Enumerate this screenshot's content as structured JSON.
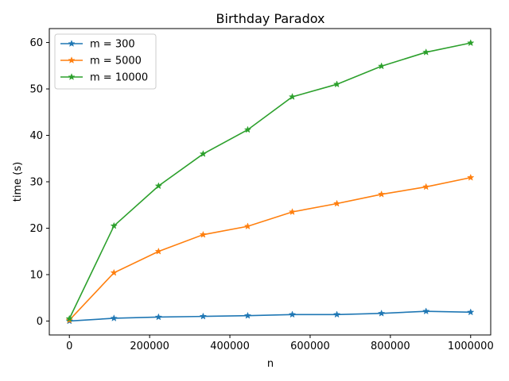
{
  "chart_data": {
    "type": "line",
    "title": "Birthday Paradox",
    "xlabel": "n",
    "ylabel": "time (s)",
    "xlim": [
      -50000,
      1050000
    ],
    "ylim": [
      -3,
      63
    ],
    "xticks": [
      0,
      200000,
      400000,
      600000,
      800000,
      1000000
    ],
    "xtick_labels": [
      "0",
      "200000",
      "400000",
      "600000",
      "800000",
      "1000000"
    ],
    "yticks": [
      0,
      10,
      20,
      30,
      40,
      50,
      60
    ],
    "ytick_labels": [
      "0",
      "10",
      "20",
      "30",
      "40",
      "50",
      "60"
    ],
    "grid": false,
    "legend_position": "upper-left",
    "marker": "star",
    "x": [
      0,
      111111,
      222222,
      333333,
      444444,
      555555,
      666666,
      777777,
      888888,
      1000000
    ],
    "series": [
      {
        "name": "m = 300",
        "color": "#1f77b4",
        "values": [
          0.0,
          0.6,
          0.85,
          1.0,
          1.15,
          1.4,
          1.4,
          1.65,
          2.1,
          1.9
        ]
      },
      {
        "name": "m = 5000",
        "color": "#ff7f0e",
        "values": [
          0.2,
          10.4,
          15.0,
          18.6,
          20.4,
          23.5,
          25.3,
          27.3,
          28.9,
          30.9
        ]
      },
      {
        "name": "m = 10000",
        "color": "#2ca02c",
        "values": [
          0.5,
          20.5,
          29.1,
          36.0,
          41.2,
          48.3,
          51.0,
          54.9,
          57.9,
          59.9
        ]
      }
    ]
  }
}
